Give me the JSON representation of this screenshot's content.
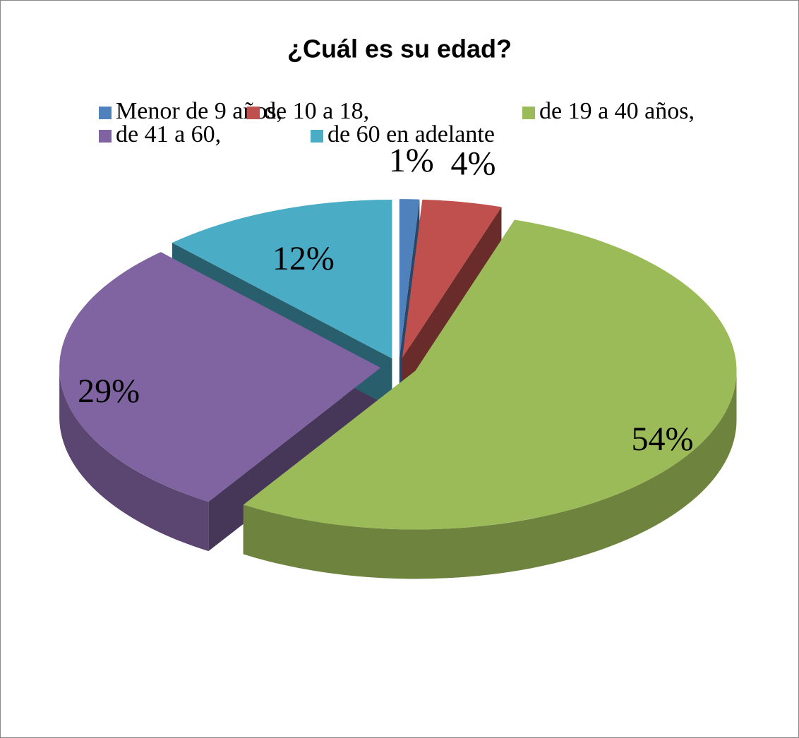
{
  "chart_data": {
    "type": "pie",
    "title": "¿Cuál es su edad?",
    "categories": [
      "Menor de 9 años,",
      "de 10 a 18,",
      "de 19 a 40 años,",
      "de 41 a 60,",
      "de 60 en adelante"
    ],
    "values": [
      1,
      4,
      54,
      29,
      12
    ],
    "value_labels": [
      "1%",
      "4%",
      "54%",
      "29%",
      "12%"
    ],
    "colors": [
      "#4f81bd",
      "#c0504d",
      "#9bbb59",
      "#8064a2",
      "#4bacc6"
    ],
    "legend": "top"
  }
}
